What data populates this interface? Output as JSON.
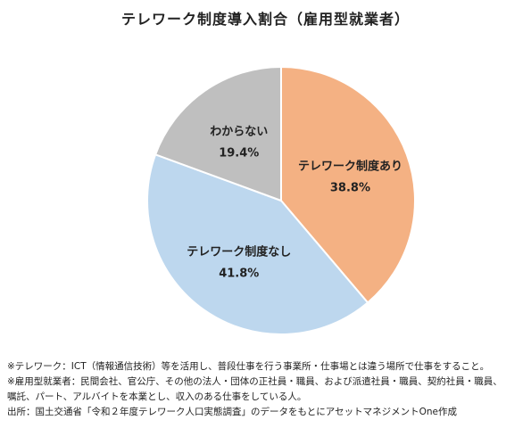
{
  "chart_data": {
    "type": "pie",
    "title": "テレワーク制度導入割合（雇用型就業者）",
    "unit": "%",
    "slices": [
      {
        "label": "テレワーク制度あり",
        "value": 38.8,
        "value_text": "38.8%",
        "color": "#F4B183"
      },
      {
        "label": "テレワーク制度なし",
        "value": 41.8,
        "value_text": "41.8%",
        "color": "#BDD7EE"
      },
      {
        "label": "わからない",
        "value": 19.4,
        "value_text": "19.4%",
        "color": "#BFBFBF"
      }
    ],
    "start_angle_deg": 0,
    "direction": "clockwise",
    "legend": "none"
  },
  "notes": [
    "※テレワーク：ICT（情報通信技術）等を活用し、普段仕事を行う事業所・仕事場とは違う場所で仕事をすること。",
    "※雇用型就業者：民間会社、官公庁、その他の法人・団体の正社員・職員、および派遣社員・職員、契約社員・職員、",
    "嘱託、パート、アルバイトを本業とし、収入のある仕事をしている人。",
    "出所：国土交通省「令和２年度テレワーク人口実態調査」のデータをもとにアセットマネジメントOne作成"
  ],
  "border_color": "#D9D9D9",
  "slice_border_color": "#FFFFFF"
}
